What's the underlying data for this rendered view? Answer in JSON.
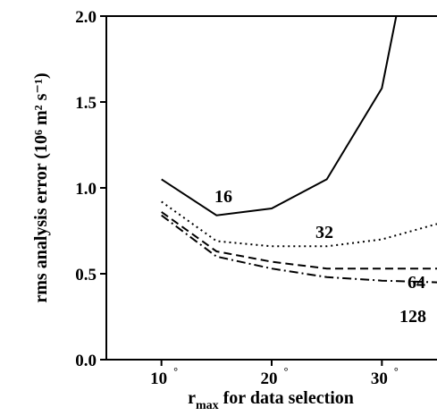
{
  "chart_data": {
    "type": "line",
    "x_unit": "°",
    "xlabel": {
      "main": "r",
      "sub": "max",
      "rest": " for data selection"
    },
    "ylabel": "rms analysis error (10⁶ m² s⁻¹)",
    "xlim": [
      5,
      35
    ],
    "ylim": [
      0.0,
      2.0
    ],
    "xticks": [
      10,
      20,
      30
    ],
    "yticks": [
      0.0,
      0.5,
      1.0,
      1.5,
      2.0
    ],
    "xtick_labels": [
      "10",
      "20",
      "30"
    ],
    "ytick_labels": [
      "0.0",
      "0.5",
      "1.0",
      "1.5",
      "2.0"
    ],
    "grid": false,
    "series": [
      {
        "name": "16",
        "style": "solid",
        "x": [
          10,
          15,
          20,
          25,
          30,
          31.3
        ],
        "y": [
          1.05,
          0.84,
          0.88,
          1.05,
          1.58,
          2.0
        ]
      },
      {
        "name": "32",
        "style": "dotted",
        "x": [
          10,
          15,
          20,
          25,
          30,
          35
        ],
        "y": [
          0.92,
          0.69,
          0.66,
          0.66,
          0.7,
          0.79
        ]
      },
      {
        "name": "64",
        "style": "dashed",
        "x": [
          10,
          15,
          20,
          25,
          30,
          35
        ],
        "y": [
          0.86,
          0.63,
          0.57,
          0.53,
          0.53,
          0.53
        ]
      },
      {
        "name": "128",
        "style": "dashdot",
        "x": [
          10,
          15,
          20,
          25,
          30,
          35
        ],
        "y": [
          0.84,
          0.6,
          0.53,
          0.48,
          0.46,
          0.45
        ]
      }
    ]
  }
}
